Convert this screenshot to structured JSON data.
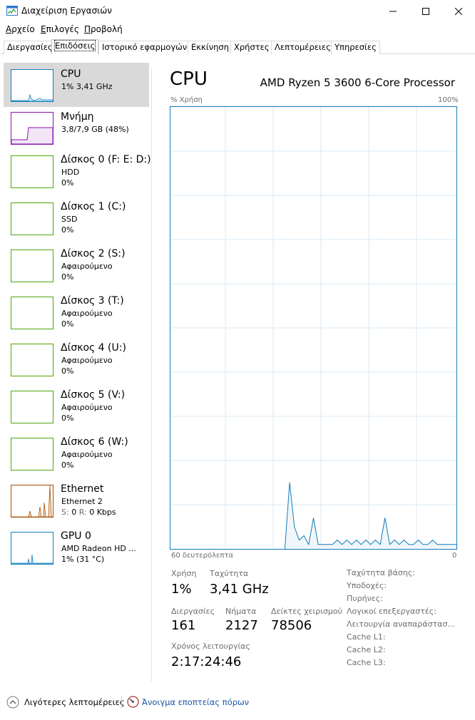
{
  "window": {
    "title": "Διαχείριση Εργασιών"
  },
  "menu": {
    "items": [
      {
        "label": "Αρχείο",
        "underline_char": "Α"
      },
      {
        "label": "Επιλογές",
        "underline_char": "Ε"
      },
      {
        "label": "Προβολή",
        "underline_char": "Π"
      }
    ]
  },
  "tabs": [
    {
      "label": "Διεργασίες",
      "active": false
    },
    {
      "label": "Επιδόσεις",
      "active": true
    },
    {
      "label": "Ιστορικό εφαρμογών",
      "active": false
    },
    {
      "label": "Εκκίνηση",
      "active": false
    },
    {
      "label": "Χρήστες",
      "active": false
    },
    {
      "label": "Λεπτομέρειες",
      "active": false
    },
    {
      "label": "Υπηρεσίες",
      "active": false
    }
  ],
  "sidebar": {
    "items": [
      {
        "title": "CPU",
        "line1": "1% 3,41 GHz",
        "line2": "",
        "kind": "cpu",
        "color": "#117dbb",
        "selected": true
      },
      {
        "title": "Μνήμη",
        "line1": "3,8/7,9 GB (48%)",
        "line2": "",
        "kind": "memory",
        "color": "#8b12ae",
        "selected": false
      },
      {
        "title": "Δίσκος 0 (F: E: D:)",
        "line1": "HDD",
        "line2": "0%",
        "kind": "disk",
        "color": "#4da60c",
        "selected": false
      },
      {
        "title": "Δίσκος 1 (C:)",
        "line1": "SSD",
        "line2": "0%",
        "kind": "disk",
        "color": "#4da60c",
        "selected": false
      },
      {
        "title": "Δίσκος 2 (S:)",
        "line1": "Αφαιρούμενο",
        "line2": "0%",
        "kind": "disk",
        "color": "#4da60c",
        "selected": false
      },
      {
        "title": "Δίσκος 3 (T:)",
        "line1": "Αφαιρούμενο",
        "line2": "0%",
        "kind": "disk",
        "color": "#4da60c",
        "selected": false
      },
      {
        "title": "Δίσκος 4 (U:)",
        "line1": "Αφαιρούμενο",
        "line2": "0%",
        "kind": "disk",
        "color": "#4da60c",
        "selected": false
      },
      {
        "title": "Δίσκος 5 (V:)",
        "line1": "Αφαιρούμενο",
        "line2": "0%",
        "kind": "disk",
        "color": "#4da60c",
        "selected": false
      },
      {
        "title": "Δίσκος 6 (W:)",
        "line1": "Αφαιρούμενο",
        "line2": "0%",
        "kind": "disk",
        "color": "#4da60c",
        "selected": false
      },
      {
        "title": "Ethernet",
        "line1": "Ethernet 2",
        "line2_parts": [
          "S:",
          "0",
          "R:",
          "0 Kbps"
        ],
        "line2": "",
        "kind": "ethernet",
        "color": "#a74f01",
        "selected": false
      },
      {
        "title": "GPU 0",
        "line1": "AMD Radeon HD ...",
        "line2": "1% (31 °C)",
        "kind": "gpu",
        "color": "#117dbb",
        "selected": false
      }
    ]
  },
  "main": {
    "title": "CPU",
    "processor": "AMD Ryzen 5 3600 6-Core Processor",
    "usage_axis_label": "% Χρήση",
    "usage_max": "100%",
    "time_axis_label": "60 δευτερόλεπτα",
    "time_axis_end": "0",
    "stats": {
      "usage_label": "Χρήση",
      "usage_value": "1%",
      "speed_label": "Ταχύτητα",
      "speed_value": "3,41 GHz",
      "processes_label": "Διεργασίες",
      "processes_value": "161",
      "threads_label": "Νήματα",
      "threads_value": "2127",
      "handles_label": "Δείκτες χειρισμού",
      "handles_value": "78506",
      "uptime_label": "Χρόνος λειτουργίας",
      "uptime_value": "2:17:24:46"
    },
    "details": [
      "Ταχύτητα βάσης:",
      "Υποδοχές:",
      "Πυρήνες:",
      "Λογικοί επεξεργαστές:",
      "Λειτουργία αναπαράστασ...",
      "Cache L1:",
      "Cache L2:",
      "Cache L3:"
    ]
  },
  "chart_data": {
    "type": "area",
    "title": "",
    "xlabel": "60 δευτερόλεπτα",
    "ylabel": "% Χρήση",
    "xlim": [
      60,
      0
    ],
    "ylim": [
      0,
      100
    ],
    "grid": true,
    "series": [
      {
        "x": [
          60,
          59,
          58,
          57,
          56,
          55,
          54,
          53,
          52,
          51,
          50,
          49,
          48,
          47,
          46,
          45,
          44,
          43,
          42,
          41,
          40,
          39,
          38,
          37,
          36,
          35,
          34,
          33,
          32,
          31,
          30,
          29,
          28,
          27,
          26,
          25,
          24,
          23,
          22,
          21,
          20,
          19,
          18,
          17,
          16,
          15,
          14,
          13,
          12,
          11,
          10,
          9,
          8,
          7,
          6,
          5,
          4,
          3,
          2,
          1,
          0
        ],
        "values": [
          0,
          0,
          0,
          0,
          0,
          0,
          0,
          0,
          0,
          0,
          0,
          0,
          0,
          0,
          0,
          0,
          0,
          0,
          0,
          0,
          0,
          0,
          0,
          0,
          0,
          15,
          5,
          2,
          3,
          1,
          7,
          1,
          1,
          1,
          1,
          2,
          1,
          2,
          1,
          2,
          1,
          2,
          1,
          2,
          1,
          7,
          1,
          2,
          1,
          2,
          1,
          1,
          2,
          1,
          1,
          2,
          1,
          1,
          1,
          1,
          1
        ]
      }
    ]
  },
  "footer": {
    "fewer_details": "Λιγότερες λεπτομέρειες",
    "open_monitor": "Άνοιγμα εποπτείας πόρων"
  }
}
